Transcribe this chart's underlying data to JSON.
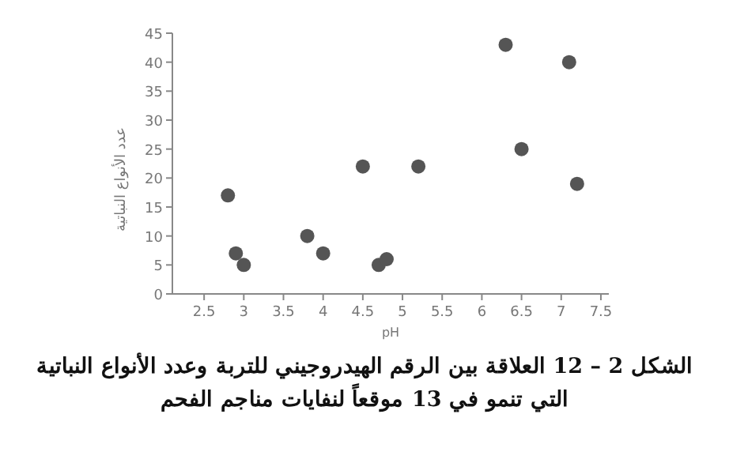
{
  "chart_data": {
    "type": "scatter",
    "title": "الشكل 2 – 12 العلاقة بين الرقم الهيدروجيني للتربة وعدد الأنواع النباتية التي تنمو في 13 موقعاً لنفايات مناجم الفحم",
    "xlabel": "pH",
    "ylabel": "عدد الأنواع النباتية",
    "x": [
      2.8,
      2.9,
      3.0,
      3.8,
      4.0,
      4.5,
      4.7,
      4.8,
      5.2,
      6.3,
      6.5,
      7.1,
      7.2
    ],
    "series": [
      {
        "color": "#555555",
        "values": [
          17,
          7,
          5,
          10,
          7,
          22,
          5,
          6,
          22,
          43,
          25,
          40,
          19
        ]
      }
    ],
    "xlim": [
      2.1,
      7.6
    ],
    "xticks": [
      2.5,
      3,
      3.5,
      4,
      4.5,
      5,
      5.5,
      6,
      6.5,
      7,
      7.5
    ],
    "ylim": [
      0,
      45
    ],
    "yticks": [
      0,
      5,
      10,
      15,
      20,
      25,
      30,
      35,
      40,
      45
    ],
    "grid": false,
    "marker": "circle"
  }
}
